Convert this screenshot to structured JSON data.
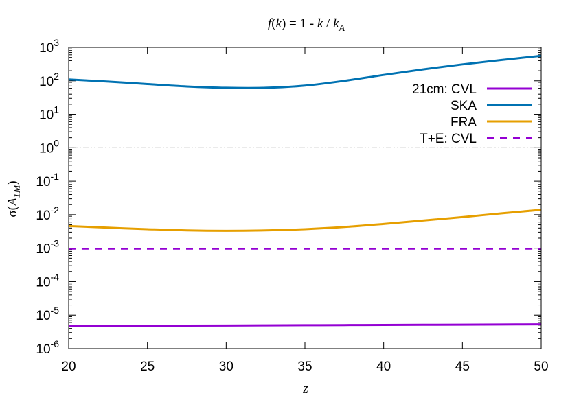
{
  "chart_data": {
    "type": "line",
    "title": "f(k) = 1 - k / k_A",
    "title_parts": {
      "f": "f",
      "k1": "k",
      "eq": ") = 1 - ",
      "k2": "k",
      "slash": " / ",
      "k3": "k",
      "sub": "A",
      "open": "("
    },
    "xlabel": "z",
    "ylabel": "σ(A_1M)",
    "ylabel_parts": {
      "sigma": "σ(",
      "A": "A",
      "sub": "1M",
      "close": ")"
    },
    "xlim": [
      20,
      50
    ],
    "ylim": [
      1e-06,
      1000
    ],
    "yscale": "log",
    "grid": false,
    "legend_position": "top-right",
    "x_ticks": [
      20,
      25,
      30,
      35,
      40,
      45,
      50
    ],
    "x_tick_labels": [
      "20",
      "25",
      "30",
      "35",
      "40",
      "45",
      "50"
    ],
    "y_ticks": [
      {
        "value": 1000,
        "base": "10",
        "exp": "3"
      },
      {
        "value": 100,
        "base": "10",
        "exp": "2"
      },
      {
        "value": 10,
        "base": "10",
        "exp": "1"
      },
      {
        "value": 1,
        "base": "10",
        "exp": "0"
      },
      {
        "value": 0.1,
        "base": "10",
        "exp": "-1"
      },
      {
        "value": 0.01,
        "base": "10",
        "exp": "-2"
      },
      {
        "value": 0.001,
        "base": "10",
        "exp": "-3"
      },
      {
        "value": 0.0001,
        "base": "10",
        "exp": "-4"
      },
      {
        "value": 1e-05,
        "base": "10",
        "exp": "-5"
      },
      {
        "value": 1e-06,
        "base": "10",
        "exp": "-6"
      }
    ],
    "reference_line": {
      "y": 1,
      "color": "#555555",
      "style": "dash-dot-dot"
    },
    "x": [
      20,
      22.5,
      25,
      27.5,
      30,
      32.5,
      35,
      37.5,
      40,
      42.5,
      45,
      47.5,
      50
    ],
    "series": [
      {
        "name": "21cm: CVL",
        "color": "#9400D3",
        "style": "solid",
        "values": [
          4.7e-06,
          4.75e-06,
          4.8e-06,
          4.85e-06,
          4.9e-06,
          4.95e-06,
          5e-06,
          5.05e-06,
          5.1e-06,
          5.15e-06,
          5.2e-06,
          5.25e-06,
          5.3e-06
        ]
      },
      {
        "name": "SKA",
        "color": "#0072B2",
        "style": "solid",
        "values": [
          110,
          95,
          80,
          68,
          62,
          62,
          72,
          100,
          150,
          220,
          310,
          420,
          560
        ]
      },
      {
        "name": "FRA",
        "color": "#E69F00",
        "style": "solid",
        "values": [
          0.0046,
          0.0041,
          0.0037,
          0.0034,
          0.0033,
          0.0034,
          0.0037,
          0.0043,
          0.0053,
          0.0067,
          0.0085,
          0.011,
          0.014
        ]
      },
      {
        "name": "T+E: CVL",
        "color": "#9400D3",
        "style": "dashed",
        "values": [
          0.00095,
          0.00095,
          0.00095,
          0.00095,
          0.00095,
          0.00095,
          0.00095,
          0.00095,
          0.00095,
          0.00095,
          0.00095,
          0.00095,
          0.00095
        ]
      }
    ]
  }
}
